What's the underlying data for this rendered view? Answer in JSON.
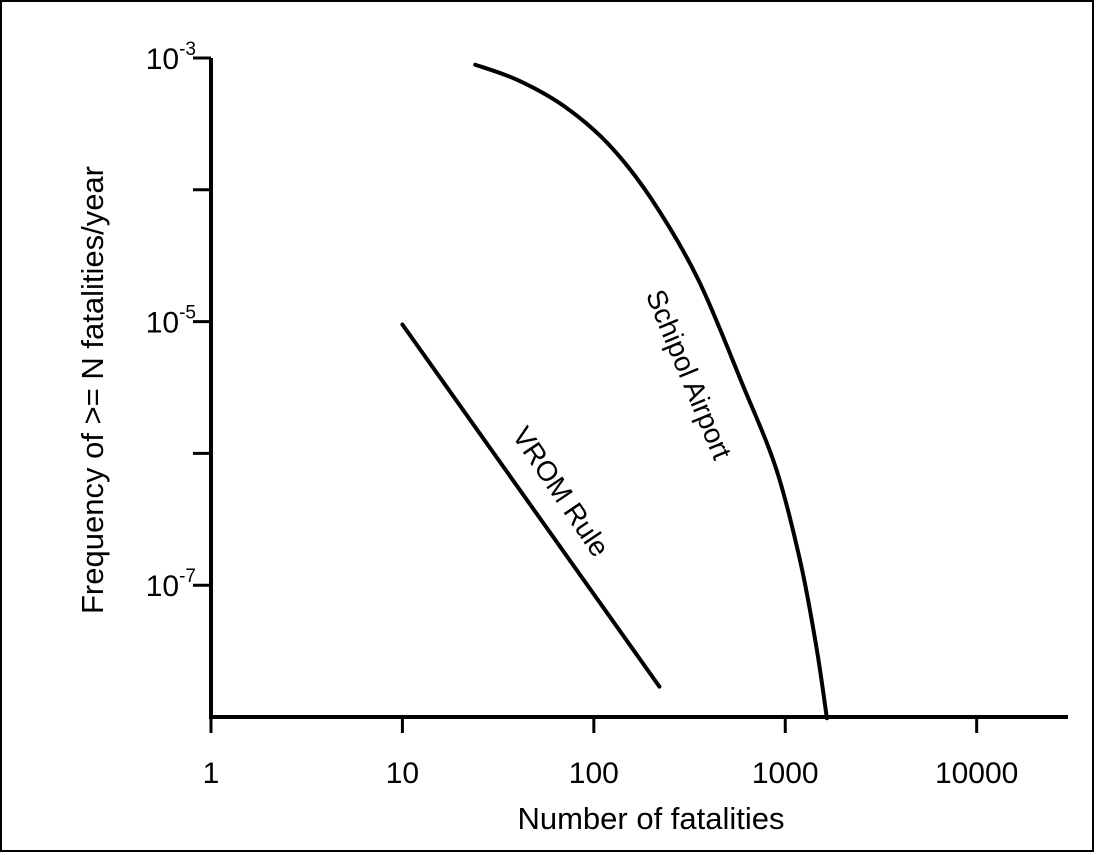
{
  "chart_data": {
    "type": "line",
    "xlabel": "Number of fatalities",
    "ylabel": "Frequency of >= N fatalities/year",
    "xscale": "log",
    "yscale": "log",
    "xlim": [
      1,
      30000
    ],
    "ylim": [
      1e-08,
      0.001
    ],
    "x_ticks": [
      {
        "value": 1,
        "label": "1"
      },
      {
        "value": 10,
        "label": "10"
      },
      {
        "value": 100,
        "label": "100"
      },
      {
        "value": 1000,
        "label": "1000"
      },
      {
        "value": 10000,
        "label": "10000"
      }
    ],
    "y_ticks": [
      {
        "value": 0.001,
        "base": "10",
        "exp": "-3"
      },
      {
        "value": 0.0001,
        "base": "",
        "exp": ""
      },
      {
        "value": 1e-05,
        "base": "10",
        "exp": "-5"
      },
      {
        "value": 1e-06,
        "base": "",
        "exp": ""
      },
      {
        "value": 1e-07,
        "base": "10",
        "exp": "-7"
      }
    ],
    "grid": false,
    "series": [
      {
        "name": "Schipol Airport",
        "x": [
          24,
          40,
          70,
          120,
          200,
          350,
          600,
          900,
          1200,
          1450,
          1650
        ],
        "y": [
          0.00089,
          0.00068,
          0.00043,
          0.00022,
          8.5e-05,
          2.1e-05,
          3.3e-06,
          7.5e-07,
          1.5e-07,
          3.5e-08,
          9.8e-09
        ]
      },
      {
        "name": "VROM Rule",
        "x": [
          10,
          220
        ],
        "y": [
          9.5e-06,
          1.7e-08
        ]
      }
    ]
  }
}
